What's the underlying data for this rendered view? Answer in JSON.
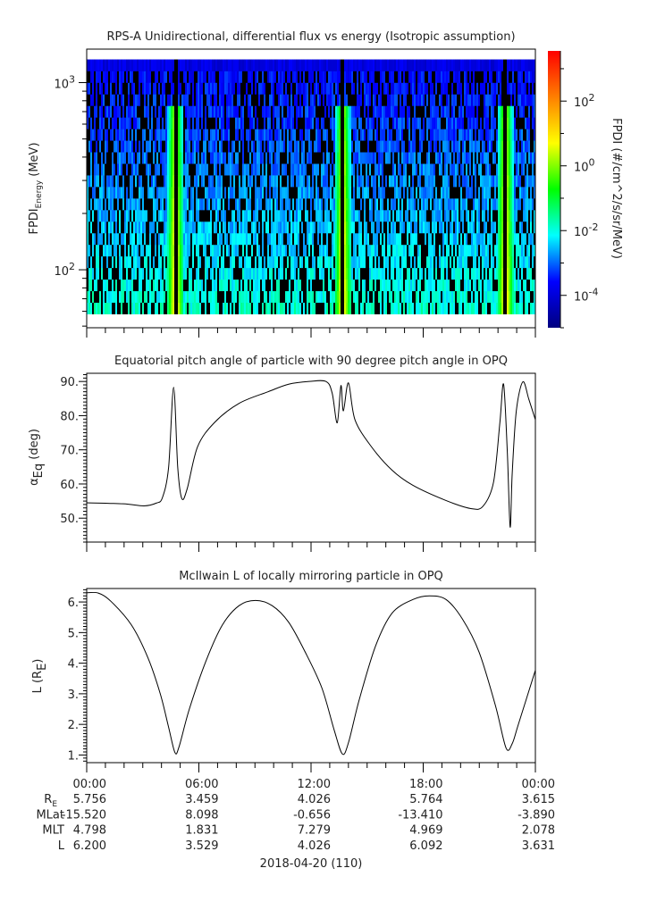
{
  "chart_data": [
    {
      "type": "heatmap",
      "title": "RPS-A Unidirectional, differential flux vs energy (Isotropic assumption)",
      "ylabel": {
        "main": "FPDI",
        "sub": "Energy",
        "unit": " (MeV)"
      },
      "yscale": "log",
      "ylim": [
        49,
        1510
      ],
      "data_energy_range_mev": [
        58,
        1330
      ],
      "ytick_labels": [
        {
          "base": "10",
          "exp": "2",
          "value": 100
        },
        {
          "base": "10",
          "exp": "3",
          "value": 1000
        }
      ],
      "xlim_hours": [
        0,
        24
      ],
      "enhancement_times_hours": [
        4.75,
        13.7,
        22.4
      ],
      "colorbar": {
        "label": "FPDI (#/cm^2/s/sr/MeV)",
        "scale": "log",
        "range_log10": [
          -5,
          3.55
        ],
        "colormap": "rainbow",
        "ticks": [
          {
            "base": "10",
            "exp": "2",
            "log": 2
          },
          {
            "base": "10",
            "exp": "0",
            "log": 0
          },
          {
            "base": "10",
            "exp": "-2",
            "log": -2
          },
          {
            "base": "10",
            "exp": "-4",
            "log": -4
          }
        ],
        "colors": [
          "#00007f",
          "#0000ff",
          "#00ffff",
          "#00ff00",
          "#ffff00",
          "#ff7f00",
          "#ff0000"
        ]
      },
      "zero_flux_color": "#000000"
    },
    {
      "type": "line",
      "title": "Equatorial pitch angle of particle with 90 degree pitch angle in OPQ",
      "ylabel": {
        "main": "α",
        "sub": "Eq",
        "unit": " (deg)"
      },
      "ylim": [
        43,
        92.4
      ],
      "yticks": [
        {
          "v": 50,
          "label": "50."
        },
        {
          "v": 60,
          "label": "60."
        },
        {
          "v": 70,
          "label": "70."
        },
        {
          "v": 80,
          "label": "80."
        },
        {
          "v": 90,
          "label": "90."
        }
      ],
      "x_hours": [
        0,
        1.95,
        3.06,
        3.72,
        4.05,
        4.38,
        4.65,
        4.87,
        5.09,
        5.38,
        5.93,
        6.82,
        8.15,
        9.7,
        10.8,
        11.9,
        12.8,
        13.13,
        13.4,
        13.6,
        13.73,
        14.0,
        14.35,
        15.23,
        16.34,
        17.45,
        19.2,
        20.55,
        21.2,
        21.76,
        22.1,
        22.3,
        22.5,
        22.65,
        22.76,
        22.98,
        23.33,
        23.65,
        24
      ],
      "y": [
        54.5,
        54.2,
        53.6,
        54.4,
        56,
        64.8,
        88.3,
        64.8,
        55.7,
        58.7,
        70.9,
        77.9,
        83.6,
        87,
        89.2,
        90,
        90,
        86.6,
        77.9,
        88.8,
        81.4,
        89.6,
        78.8,
        70.9,
        64,
        59.6,
        55.2,
        52.8,
        53.5,
        60.5,
        77.9,
        89.2,
        69.2,
        47.4,
        63,
        81.4,
        89.9,
        84.8,
        78.8
      ]
    },
    {
      "type": "line",
      "title": "McIlwain L of locally mirroring particle in OPQ",
      "ylabel": {
        "main": "L (R",
        "sub": "E",
        "unit": ")"
      },
      "ylim": [
        0.75,
        6.44
      ],
      "yticks": [
        {
          "v": 1,
          "label": "1."
        },
        {
          "v": 2,
          "label": "2."
        },
        {
          "v": 3,
          "label": "3."
        },
        {
          "v": 4,
          "label": "4."
        },
        {
          "v": 5,
          "label": "5."
        },
        {
          "v": 6,
          "label": "6."
        }
      ],
      "x_hours": [
        0,
        0.62,
        1.28,
        2.39,
        3.28,
        3.94,
        4.38,
        4.72,
        4.94,
        5.49,
        6.38,
        7.26,
        8.15,
        9.03,
        9.92,
        10.8,
        11.69,
        12.58,
        13.24,
        13.68,
        14.01,
        14.57,
        15.45,
        16.34,
        17.45,
        18.33,
        19.22,
        20.1,
        20.99,
        21.87,
        22.43,
        22.76,
        23.09,
        24
      ],
      "y": [
        6.3,
        6.29,
        6.03,
        5.25,
        4.17,
        2.99,
        1.91,
        1.08,
        1.27,
        2.5,
        4.07,
        5.25,
        5.88,
        6.05,
        5.88,
        5.34,
        4.36,
        3.19,
        1.81,
        1.03,
        1.42,
        2.79,
        4.56,
        5.64,
        6.08,
        6.2,
        6.08,
        5.44,
        4.36,
        2.6,
        1.23,
        1.37,
        2.0,
        3.77
      ]
    }
  ],
  "xaxis": {
    "tick_labels": [
      "00:00",
      "06:00",
      "12:00",
      "18:00",
      "00:00"
    ],
    "tick_hours": [
      0,
      6,
      12,
      18,
      24
    ],
    "date_label": "2018-04-20 (110)"
  },
  "ephemeris": [
    {
      "label": "R",
      "label_sub": "E",
      "values": [
        "5.756",
        "3.459",
        "4.026",
        "5.764",
        "3.615"
      ]
    },
    {
      "label": "MLat",
      "label_sub": "",
      "values": [
        "-15.520",
        "8.098",
        "-0.656",
        "-13.410",
        "-3.890"
      ]
    },
    {
      "label": "MLT",
      "label_sub": "",
      "values": [
        "4.798",
        "1.831",
        "7.279",
        "4.969",
        "2.078"
      ]
    },
    {
      "label": "L",
      "label_sub": "",
      "values": [
        "6.200",
        "3.529",
        "4.026",
        "6.092",
        "3.631"
      ]
    }
  ]
}
